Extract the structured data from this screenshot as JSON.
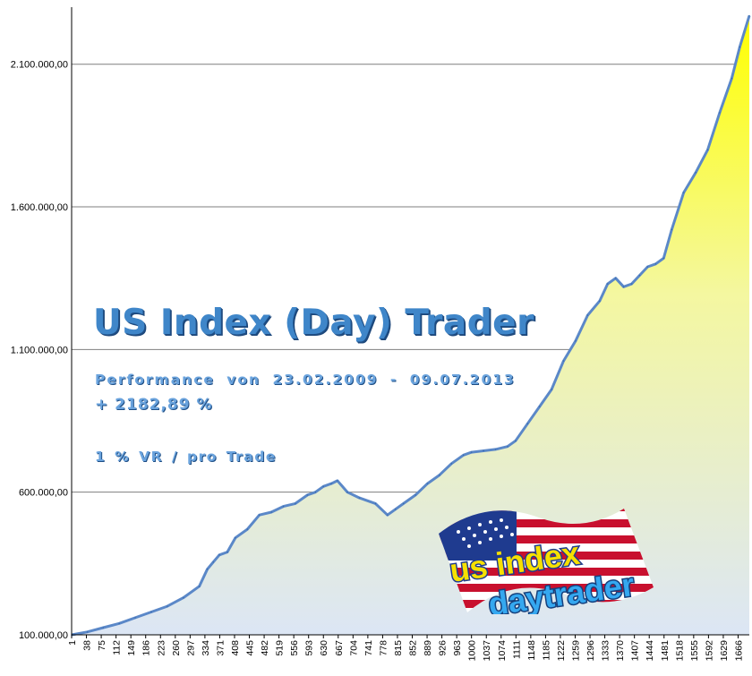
{
  "overlay": {
    "title": "US Index (Day) Trader",
    "performance": "Performance von 23.02.2009 - 09.07.2013",
    "gain": "+ 2182,89 %",
    "risk": "1 % VR / pro Trade"
  },
  "logo": {
    "line1": "us index",
    "line2": "daytrader"
  },
  "colors": {
    "title": "#3f86c9",
    "fill_top": "#ffff00",
    "fill_bottom": "#dce6f5",
    "line": "#5b88c8",
    "grid": "#7f7f7f"
  },
  "chart_data": {
    "type": "area",
    "title": "",
    "xlabel": "",
    "ylabel": "",
    "ylim": [
      100000,
      2300000
    ],
    "xlim": [
      1,
      1694
    ],
    "yticks": [
      100000,
      600000,
      1100000,
      1600000,
      2100000
    ],
    "ytick_labels": [
      "100.000,00",
      "600.000,00",
      "1.100.000,00",
      "1.600.000,00",
      "2.100.000,00"
    ],
    "xtick_labels": [
      "1",
      "38",
      "75",
      "112",
      "149",
      "186",
      "223",
      "260",
      "297",
      "334",
      "371",
      "408",
      "445",
      "482",
      "519",
      "556",
      "593",
      "630",
      "667",
      "704",
      "741",
      "778",
      "815",
      "852",
      "889",
      "926",
      "963",
      "1000",
      "1037",
      "1074",
      "1111",
      "1148",
      "1185",
      "1222",
      "1259",
      "1296",
      "1333",
      "1370",
      "1407",
      "1444",
      "1481",
      "1518",
      "1555",
      "1592",
      "1629",
      "1666"
    ],
    "grid": "horizontal",
    "legend": "none",
    "series": [
      {
        "x": [
          1,
          40,
          80,
          120,
          160,
          200,
          240,
          280,
          320,
          340,
          355,
          370,
          390,
          410,
          440,
          470,
          500,
          530,
          560,
          590,
          610,
          630,
          650,
          665,
          690,
          720,
          760,
          790,
          810,
          830,
          860,
          890,
          920,
          950,
          980,
          1000,
          1030,
          1060,
          1090,
          1110,
          1140,
          1170,
          1200,
          1230,
          1260,
          1290,
          1320,
          1340,
          1360,
          1380,
          1400,
          1420,
          1440,
          1460,
          1480,
          1500,
          1530,
          1560,
          1590,
          1620,
          1650,
          1670,
          1694
        ],
        "values": [
          100000,
          110000,
          125000,
          140000,
          160000,
          180000,
          200000,
          230000,
          270000,
          330000,
          355000,
          380000,
          390000,
          440000,
          470000,
          520000,
          530000,
          550000,
          560000,
          590000,
          600000,
          620000,
          630000,
          640000,
          600000,
          580000,
          560000,
          520000,
          540000,
          560000,
          590000,
          630000,
          660000,
          700000,
          730000,
          740000,
          745000,
          750000,
          760000,
          780000,
          840000,
          900000,
          960000,
          1060000,
          1130000,
          1220000,
          1270000,
          1330000,
          1350000,
          1320000,
          1330000,
          1360000,
          1390000,
          1400000,
          1420000,
          1520000,
          1650000,
          1720000,
          1800000,
          1930000,
          2050000,
          2160000,
          2270000
        ]
      }
    ]
  }
}
